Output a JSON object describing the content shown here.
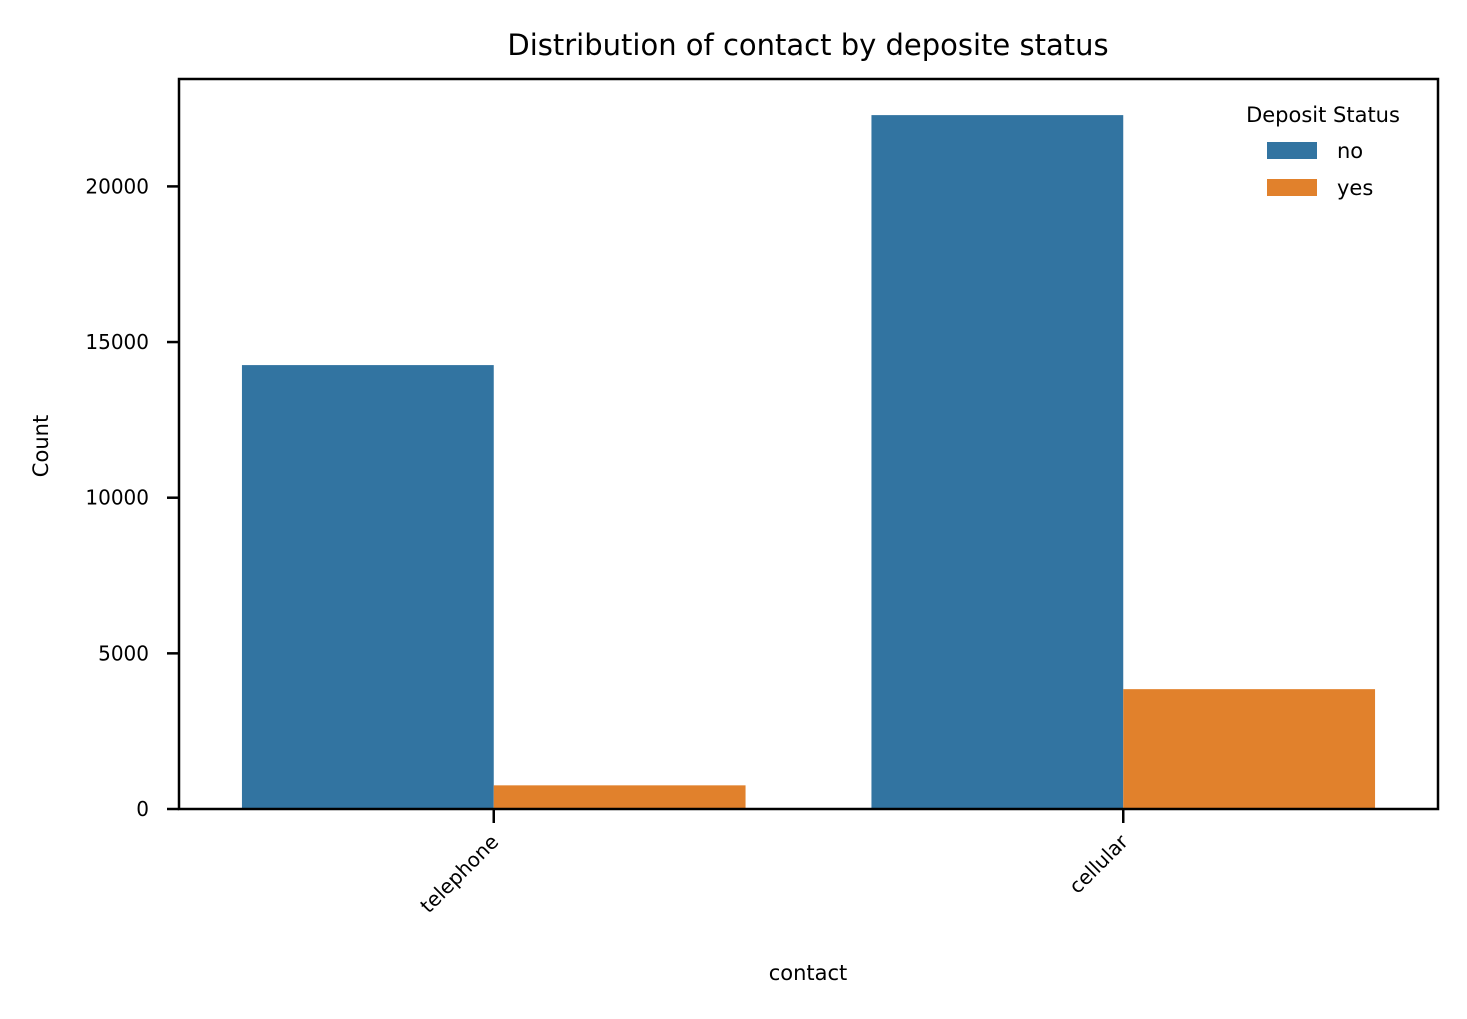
{
  "chart_data": {
    "type": "bar",
    "title": "Distribution of contact by deposite status",
    "xlabel": "contact",
    "ylabel": "Count",
    "categories": [
      "telephone",
      "cellular"
    ],
    "series": [
      {
        "name": "no",
        "values": [
          14260,
          22290
        ],
        "color": "#3274a1"
      },
      {
        "name": "yes",
        "values": [
          760,
          3850
        ],
        "color": "#e1812c"
      }
    ],
    "ylim": [
      0,
      23450
    ],
    "yticks": [
      0,
      5000,
      10000,
      15000,
      20000
    ],
    "grid": false,
    "legend": {
      "title": "Deposit Status",
      "placement": "top-right"
    }
  }
}
